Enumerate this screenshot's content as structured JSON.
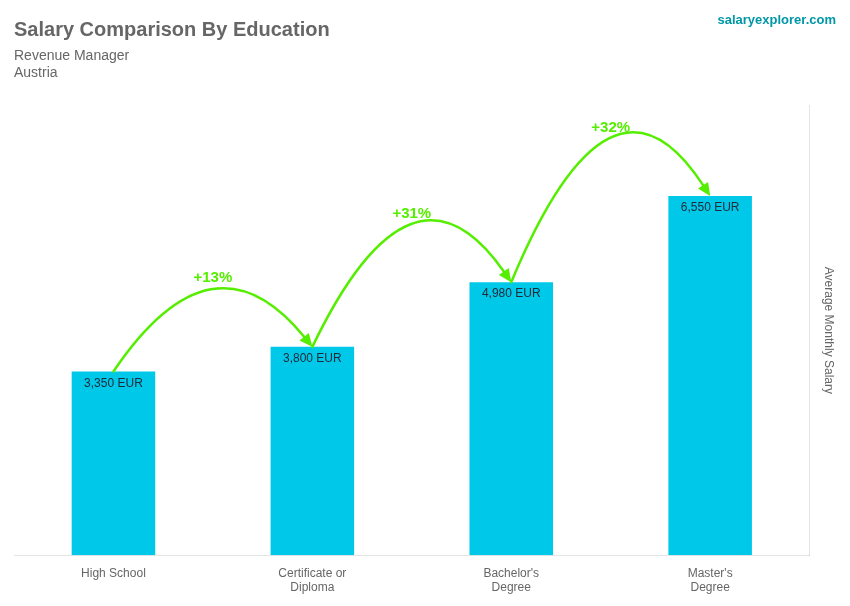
{
  "chart_data": {
    "type": "bar",
    "title": "Salary Comparison By Education",
    "subtitle": "Revenue Manager",
    "annotations": [
      "Austria",
      "salaryexplorer.com"
    ],
    "categories": [
      "High School",
      "Certificate or\nDiploma",
      "Bachelor's\nDegree",
      "Master's\nDegree"
    ],
    "values": [
      3350,
      3800,
      4980,
      6550
    ],
    "value_labels": [
      "3,350 EUR",
      "3,800 EUR",
      "4,980 EUR",
      "6,550 EUR"
    ],
    "data_labels": true,
    "color": "#00c8e8",
    "ylabel": "Average Monthly Salary",
    "ylim": [
      0,
      8200
    ],
    "tick_labels": "x",
    "grid": false,
    "arrows": [
      {
        "from": "High School",
        "to": "Certificate or\nDiploma",
        "label": "+13%",
        "color": "#55ee00"
      },
      {
        "from": "Certificate or\nDiploma",
        "to": "Bachelor's\nDegree",
        "label": "+31%",
        "color": "#55ee00"
      },
      {
        "from": "Bachelor's\nDegree",
        "to": "Master's\nDegree",
        "label": "+32%",
        "color": "#55ee00"
      }
    ]
  }
}
